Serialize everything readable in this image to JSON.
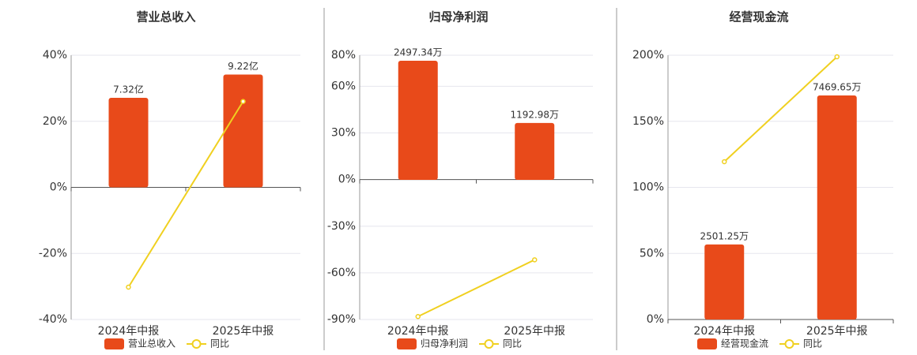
{
  "chart_data": [
    {
      "type": "combo",
      "title": "营业总收入",
      "categories": [
        "2024年中报",
        "2025年中报"
      ],
      "series": [
        {
          "name": "营业总收入",
          "type": "bar",
          "axis": "y2",
          "color": "#e84a1a",
          "values": [
            7.32,
            9.22
          ],
          "value_labels": [
            "7.32亿",
            "9.22亿"
          ]
        },
        {
          "name": "同比",
          "type": "line",
          "color": "#f0d020",
          "values": [
            -30.2,
            26.0
          ]
        }
      ],
      "ylim": [
        -40,
        40
      ],
      "yticks": [
        {
          "value": -40,
          "label": "-40%"
        },
        {
          "value": -20,
          "label": "-20%"
        },
        {
          "value": 0,
          "label": "0%"
        },
        {
          "value": 20,
          "label": "20%"
        },
        {
          "value": 40,
          "label": "40%"
        }
      ],
      "y2lim": [
        -10.8,
        10.8
      ],
      "grid": true
    },
    {
      "type": "combo",
      "title": "归母净利润",
      "categories": [
        "2024年中报",
        "2025年中报"
      ],
      "series": [
        {
          "name": "归母净利润",
          "type": "bar",
          "axis": "y2",
          "color": "#e84a1a",
          "values": [
            2497.34,
            1192.98
          ],
          "value_labels": [
            "2497.34万",
            "1192.98万"
          ]
        },
        {
          "name": "同比",
          "type": "line",
          "color": "#f0d020",
          "values": [
            -88.1,
            -51.6
          ]
        }
      ],
      "ylim": [
        -90,
        80
      ],
      "yticks": [
        {
          "value": -90,
          "label": "-90%"
        },
        {
          "value": -60,
          "label": "-60%"
        },
        {
          "value": -30,
          "label": "-30%"
        },
        {
          "value": 0,
          "label": "0%"
        },
        {
          "value": 30,
          "label": "30%"
        },
        {
          "value": 60,
          "label": "60%"
        },
        {
          "value": 80,
          "label": "80%"
        }
      ],
      "y2lim": [
        -2928,
        2613
      ],
      "grid": true
    },
    {
      "type": "combo",
      "title": "经营现金流",
      "categories": [
        "2024年中报",
        "2025年中报"
      ],
      "series": [
        {
          "name": "经营现金流",
          "type": "bar",
          "axis": "y2",
          "color": "#e84a1a",
          "values": [
            2501.25,
            7469.65
          ],
          "value_labels": [
            "2501.25万",
            "7469.65万"
          ]
        },
        {
          "name": "同比",
          "type": "line",
          "color": "#f0d020",
          "values": [
            119.4,
            198.8
          ]
        }
      ],
      "ylim": [
        0,
        200
      ],
      "yticks": [
        {
          "value": 0,
          "label": "0%"
        },
        {
          "value": 50,
          "label": "50%"
        },
        {
          "value": 100,
          "label": "100%"
        },
        {
          "value": 150,
          "label": "150%"
        },
        {
          "value": 200,
          "label": "200%"
        }
      ],
      "y2lim": [
        0,
        8811
      ],
      "grid": true
    }
  ]
}
